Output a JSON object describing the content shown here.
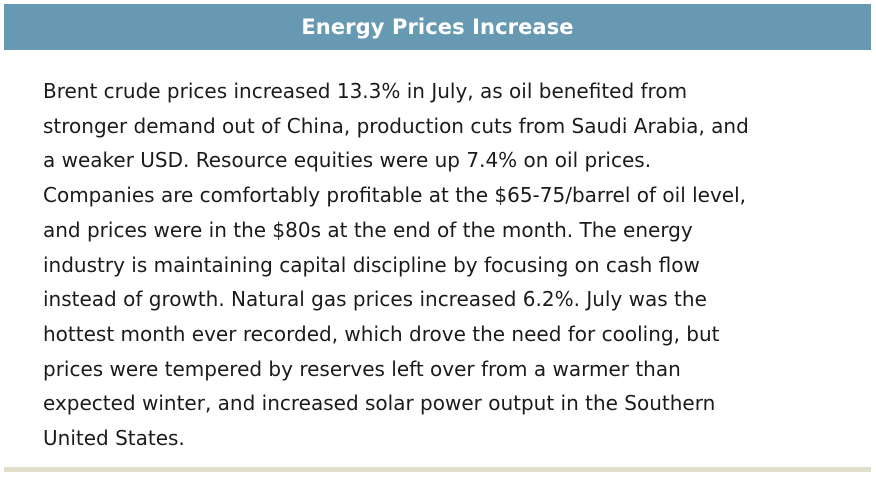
{
  "panel": {
    "title": "Energy Prices Increase",
    "body": "Brent crude prices increased 13.3% in July, as oil benefited from\nstronger demand out of China, production cuts from Saudi Arabia, and\na weaker USD.  Resource equities were up 7.4% on oil prices.\nCompanies are comfortably profitable at the $65-75/barrel of oil level,\nand prices were in the $80s at the end of the month. The energy\nindustry is maintaining capital discipline by focusing on cash flow\ninstead of growth. Natural gas prices increased 6.2%.  July was the\nhottest month ever recorded, which drove the need for cooling, but\nprices were tempered by reserves left over from a warmer than\nexpected winter, and increased solar power output in the Southern\nUnited States."
  },
  "colors": {
    "header_bg": "#6899b3",
    "header_text": "#ffffff",
    "body_text": "#1b1b1b",
    "rule": "#e1dfcb"
  }
}
